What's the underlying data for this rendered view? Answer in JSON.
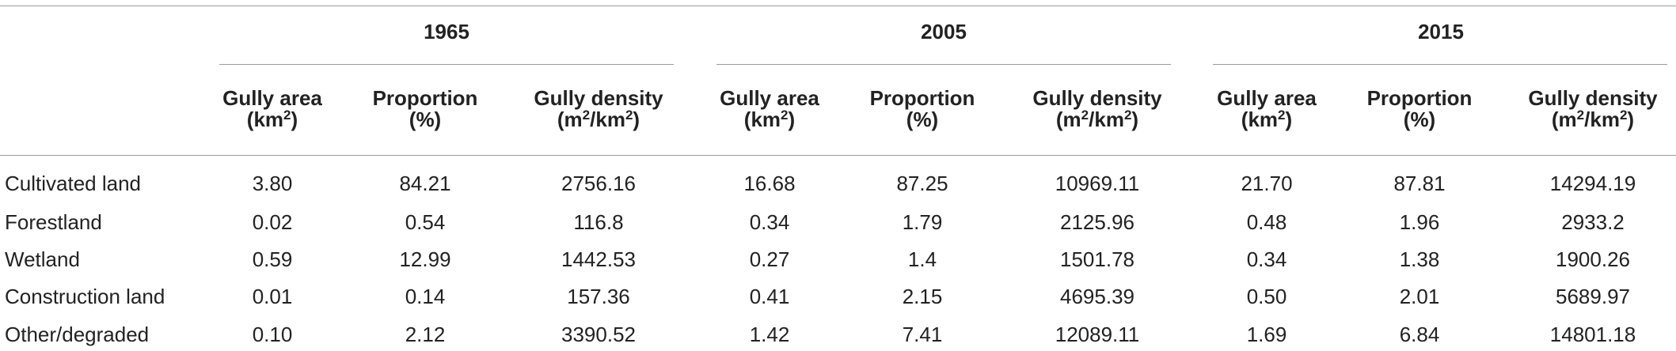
{
  "table": {
    "groups": [
      "1965",
      "2005",
      "2015"
    ],
    "subheaders": [
      {
        "name": "Gully area",
        "unit": [
          "(km",
          "2",
          ")"
        ]
      },
      {
        "name": "Proportion",
        "unit": [
          "(%)"
        ]
      },
      {
        "name": "Gully density",
        "unit": [
          "(m",
          "2",
          "/km",
          "2",
          ")"
        ]
      }
    ],
    "rows": [
      [
        "Cultivated land",
        "3.80",
        "84.21",
        "2756.16",
        "16.68",
        "87.25",
        "10969.11",
        "21.70",
        "87.81",
        "14294.19"
      ],
      [
        "Forestland",
        "0.02",
        "0.54",
        "116.8",
        "0.34",
        "1.79",
        "2125.96",
        "0.48",
        "1.96",
        "2933.2"
      ],
      [
        "Wetland",
        "0.59",
        "12.99",
        "1442.53",
        "0.27",
        "1.4",
        "1501.78",
        "0.34",
        "1.38",
        "1900.26"
      ],
      [
        "Construction land",
        "0.01",
        "0.14",
        "157.36",
        "0.41",
        "2.15",
        "4695.39",
        "0.50",
        "2.01",
        "5689.97"
      ],
      [
        "Other/degraded",
        "0.10",
        "2.12",
        "3390.52",
        "1.42",
        "7.41",
        "12089.11",
        "1.69",
        "6.84",
        "14801.18"
      ]
    ]
  }
}
